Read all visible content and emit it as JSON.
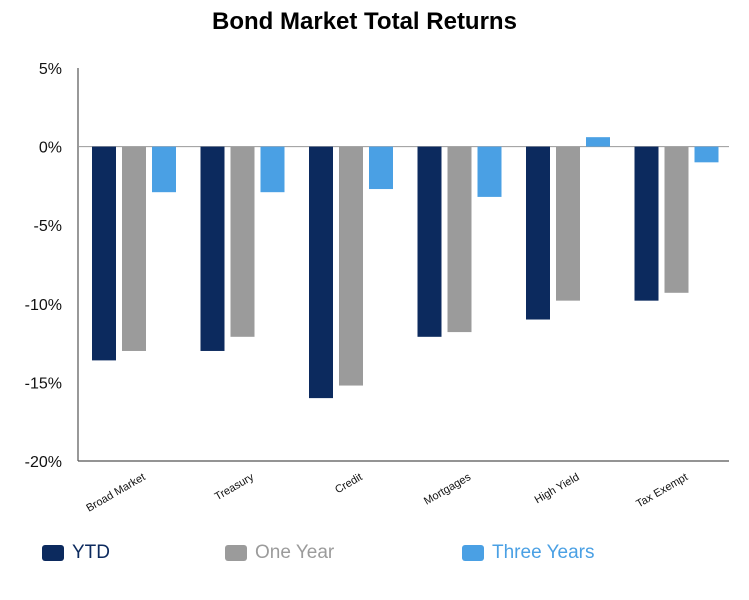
{
  "colors": {
    "ytd": "#0c2a5e",
    "one_year": "#9b9b9b",
    "three_years": "#4aa0e4",
    "axis": "#555555",
    "grid": "#999999",
    "text": "#111111"
  },
  "chart_data": {
    "type": "bar",
    "title": "Bond Market Total Returns",
    "xlabel": "",
    "ylabel": "",
    "ylim": [
      -20,
      5
    ],
    "yticks": [
      5,
      0,
      -5,
      -10,
      -15,
      -20
    ],
    "ytick_labels": [
      "5%",
      "0%",
      "-5%",
      "-10%",
      "-15%",
      "-20%"
    ],
    "categories": [
      "Broad Market",
      "Treasury",
      "Credit",
      "Mortgages",
      "High Yield",
      "Tax Exempt"
    ],
    "series": [
      {
        "name": "YTD",
        "color_key": "ytd",
        "values": [
          -13.6,
          -13.0,
          -16.0,
          -12.1,
          -11.0,
          -9.8
        ]
      },
      {
        "name": "One Year",
        "color_key": "one_year",
        "values": [
          -13.0,
          -12.1,
          -15.2,
          -11.8,
          -9.8,
          -9.3
        ]
      },
      {
        "name": "Three Years",
        "color_key": "three_years",
        "values": [
          -2.9,
          -2.9,
          -2.7,
          -3.2,
          0.6,
          -1.0
        ]
      }
    ],
    "legend_position": "bottom",
    "grid": false
  }
}
